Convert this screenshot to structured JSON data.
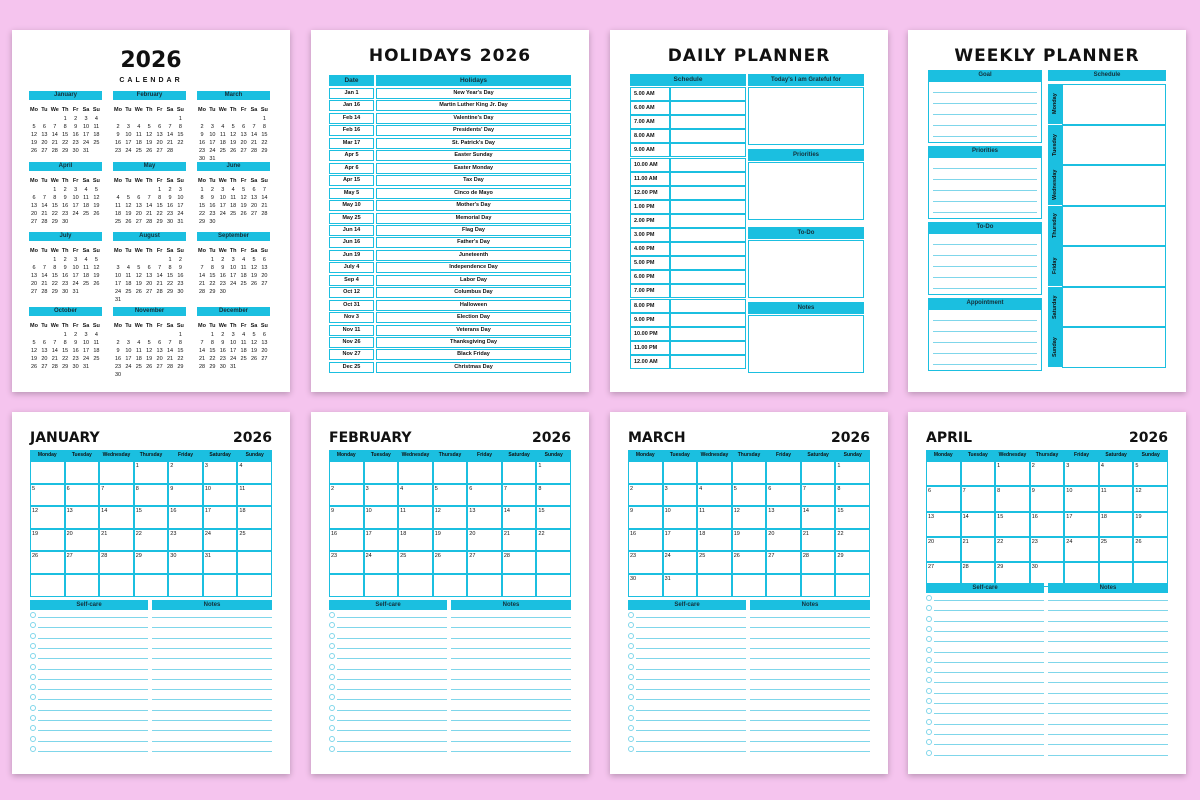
{
  "year_calendar": {
    "year": "2026",
    "subtitle": "CALENDAR",
    "weekdays": [
      "Mo",
      "Tu",
      "We",
      "Th",
      "Fr",
      "Sa",
      "Su"
    ],
    "months": [
      {
        "name": "January",
        "weeks": [
          [
            1,
            2,
            3,
            4
          ],
          [
            5,
            6,
            7,
            8,
            9,
            10,
            11
          ],
          [
            12,
            13,
            14,
            15,
            16,
            17,
            18
          ],
          [
            19,
            20,
            21,
            22,
            23,
            24,
            25
          ],
          [
            26,
            27,
            28,
            29,
            30,
            31
          ]
        ]
      },
      {
        "name": "February",
        "weeks": [
          [
            1
          ],
          [
            2,
            3,
            4,
            5,
            6,
            7,
            8
          ],
          [
            9,
            10,
            11,
            12,
            13,
            14,
            15
          ],
          [
            16,
            17,
            18,
            19,
            20,
            21,
            22
          ],
          [
            23,
            24,
            25,
            26,
            27,
            28
          ]
        ]
      },
      {
        "name": "March",
        "weeks": [
          [
            1
          ],
          [
            2,
            3,
            4,
            5,
            6,
            7,
            8
          ],
          [
            9,
            10,
            11,
            12,
            13,
            14,
            15
          ],
          [
            16,
            17,
            18,
            19,
            20,
            21,
            22
          ],
          [
            23,
            24,
            25,
            26,
            27,
            28,
            29
          ],
          [
            30,
            31
          ]
        ]
      },
      {
        "name": "April",
        "weeks": [
          [
            1,
            2,
            3,
            4,
            5
          ],
          [
            6,
            7,
            8,
            9,
            10,
            11,
            12
          ],
          [
            13,
            14,
            15,
            16,
            17,
            18,
            19
          ],
          [
            20,
            21,
            22,
            23,
            24,
            25,
            26
          ],
          [
            27,
            28,
            29,
            30
          ]
        ]
      },
      {
        "name": "May",
        "weeks": [
          [
            1,
            2,
            3
          ],
          [
            4,
            5,
            6,
            7,
            8,
            9,
            10
          ],
          [
            11,
            12,
            13,
            14,
            15,
            16,
            17
          ],
          [
            18,
            19,
            20,
            21,
            22,
            23,
            24
          ],
          [
            25,
            26,
            27,
            28,
            29,
            30,
            31
          ]
        ]
      },
      {
        "name": "June",
        "weeks": [
          [
            1,
            2,
            3,
            4,
            5,
            6,
            7
          ],
          [
            8,
            9,
            10,
            11,
            12,
            13,
            14
          ],
          [
            15,
            16,
            17,
            18,
            19,
            20,
            21
          ],
          [
            22,
            23,
            24,
            25,
            26,
            27,
            28
          ],
          [
            29,
            30
          ]
        ]
      },
      {
        "name": "July",
        "weeks": [
          [
            1,
            2,
            3,
            4,
            5
          ],
          [
            6,
            7,
            8,
            9,
            10,
            11,
            12
          ],
          [
            13,
            14,
            15,
            16,
            17,
            18,
            19
          ],
          [
            20,
            21,
            22,
            23,
            24,
            25,
            26
          ],
          [
            27,
            28,
            29,
            30,
            31
          ]
        ]
      },
      {
        "name": "August",
        "weeks": [
          [
            1,
            2
          ],
          [
            3,
            4,
            5,
            6,
            7,
            8,
            9
          ],
          [
            10,
            11,
            12,
            13,
            14,
            15,
            16
          ],
          [
            17,
            18,
            19,
            20,
            21,
            22,
            23
          ],
          [
            24,
            25,
            26,
            27,
            28,
            29,
            30
          ],
          [
            31
          ]
        ]
      },
      {
        "name": "September",
        "weeks": [
          [
            1,
            2,
            3,
            4,
            5,
            6
          ],
          [
            7,
            8,
            9,
            10,
            11,
            12,
            13
          ],
          [
            14,
            15,
            16,
            17,
            18,
            19,
            20
          ],
          [
            21,
            22,
            23,
            24,
            25,
            26,
            27
          ],
          [
            28,
            29,
            30
          ]
        ]
      },
      {
        "name": "October",
        "weeks": [
          [
            1,
            2,
            3,
            4
          ],
          [
            5,
            6,
            7,
            8,
            9,
            10,
            11
          ],
          [
            12,
            13,
            14,
            15,
            16,
            17,
            18
          ],
          [
            19,
            20,
            21,
            22,
            23,
            24,
            25
          ],
          [
            26,
            27,
            28,
            29,
            30,
            31
          ]
        ]
      },
      {
        "name": "November",
        "weeks": [
          [
            1
          ],
          [
            2,
            3,
            4,
            5,
            6,
            7,
            8
          ],
          [
            9,
            10,
            11,
            12,
            13,
            14,
            15
          ],
          [
            16,
            17,
            18,
            19,
            20,
            21,
            22
          ],
          [
            23,
            24,
            25,
            26,
            27,
            28,
            29
          ],
          [
            30
          ]
        ]
      },
      {
        "name": "December",
        "weeks": [
          [
            1,
            2,
            3,
            4,
            5,
            6
          ],
          [
            7,
            8,
            9,
            10,
            11,
            12,
            13
          ],
          [
            14,
            15,
            16,
            17,
            18,
            19,
            20
          ],
          [
            21,
            22,
            23,
            24,
            25,
            26,
            27
          ],
          [
            28,
            29,
            30,
            31
          ]
        ]
      }
    ]
  },
  "holidays": {
    "title": "HOLIDAYS 2026",
    "headers": [
      "Date",
      "Holidays"
    ],
    "rows": [
      [
        "Jan 1",
        "New Year's Day"
      ],
      [
        "Jan 16",
        "Martin Luther King Jr. Day"
      ],
      [
        "Feb 14",
        "Valentine's Day"
      ],
      [
        "Feb 16",
        "Presidents' Day"
      ],
      [
        "Mar 17",
        "St. Patrick's Day"
      ],
      [
        "Apr 5",
        "Easter Sunday"
      ],
      [
        "Apr 6",
        "Easter Monday"
      ],
      [
        "Apr 15",
        "Tax Day"
      ],
      [
        "May 5",
        "Cinco de Mayo"
      ],
      [
        "May 10",
        "Mother's Day"
      ],
      [
        "May 25",
        "Memorial Day"
      ],
      [
        "Jun 14",
        "Flag Day"
      ],
      [
        "Jun 16",
        "Father's Day"
      ],
      [
        "Jun 19",
        "Juneteenth"
      ],
      [
        "July 4",
        "Independence Day"
      ],
      [
        "Sep 4",
        "Labor Day"
      ],
      [
        "Oct 12",
        "Columbus Day"
      ],
      [
        "Oct 31",
        "Halloween"
      ],
      [
        "Nov 3",
        "Election Day"
      ],
      [
        "Nov 11",
        "Veterans Day"
      ],
      [
        "Nov 26",
        "Thanksgiving Day"
      ],
      [
        "Nov 27",
        "Black Friday"
      ],
      [
        "Dec 25",
        "Christmas Day"
      ]
    ]
  },
  "daily_planner": {
    "title": "DAILY PLANNER",
    "schedule": "Schedule",
    "times": [
      "5.00 AM",
      "6.00 AM",
      "7.00 AM",
      "8.00 AM",
      "9.00 AM",
      "10.00 AM",
      "11.00 AM",
      "12.00 PM",
      "1.00 PM",
      "2.00 PM",
      "3.00 PM",
      "4.00 PM",
      "5.00 PM",
      "6.00 PM",
      "7.00 PM",
      "8.00 PM",
      "9.00 PM",
      "10.00 PM",
      "11.00 PM",
      "12.00 AM"
    ],
    "sections": [
      "Today's I am Grateful for",
      "Priorities",
      "To-Do",
      "Notes"
    ]
  },
  "weekly_planner": {
    "title": "WEEKLY PLANNER",
    "sections": [
      "Goal",
      "Priorities",
      "To-Do",
      "Appointment"
    ],
    "schedule": "Schedule",
    "days": [
      "Monday",
      "Tuesday",
      "Wednesday",
      "Thursday",
      "Friday",
      "Saturday",
      "Sunday"
    ]
  },
  "monthly": {
    "weekdays": [
      "Monday",
      "Tuesday",
      "Wednesday",
      "Thursday",
      "Friday",
      "Saturday",
      "Sunday"
    ],
    "sections": [
      "Self-care",
      "Notes"
    ],
    "pages": [
      {
        "month": "JANUARY",
        "year": "2026",
        "weeks": [
          [
            1,
            2,
            3,
            4
          ],
          [
            5,
            6,
            7,
            8,
            9,
            10,
            11
          ],
          [
            12,
            13,
            14,
            15,
            16,
            17,
            18
          ],
          [
            19,
            20,
            21,
            22,
            23,
            24,
            25
          ],
          [
            26,
            27,
            28,
            29,
            30,
            31
          ]
        ]
      },
      {
        "month": "FEBRUARY",
        "year": "2026",
        "weeks": [
          [
            1
          ],
          [
            2,
            3,
            4,
            5,
            6,
            7,
            8
          ],
          [
            9,
            10,
            11,
            12,
            13,
            14,
            15
          ],
          [
            16,
            17,
            18,
            19,
            20,
            21,
            22
          ],
          [
            23,
            24,
            25,
            26,
            27,
            28
          ]
        ]
      },
      {
        "month": "MARCH",
        "year": "2026",
        "weeks": [
          [
            1
          ],
          [
            2,
            3,
            4,
            5,
            6,
            7,
            8
          ],
          [
            9,
            10,
            11,
            12,
            13,
            14,
            15
          ],
          [
            16,
            17,
            18,
            19,
            20,
            21,
            22
          ],
          [
            23,
            24,
            25,
            26,
            27,
            28,
            29
          ],
          [
            30,
            31
          ]
        ]
      },
      {
        "month": "APRIL",
        "year": "2026",
        "weeks": [
          [
            1,
            2,
            3,
            4,
            5
          ],
          [
            6,
            7,
            8,
            9,
            10,
            11,
            12
          ],
          [
            13,
            14,
            15,
            16,
            17,
            18,
            19
          ],
          [
            20,
            21,
            22,
            23,
            24,
            25,
            26
          ],
          [
            27,
            28,
            29,
            30
          ]
        ]
      }
    ]
  }
}
